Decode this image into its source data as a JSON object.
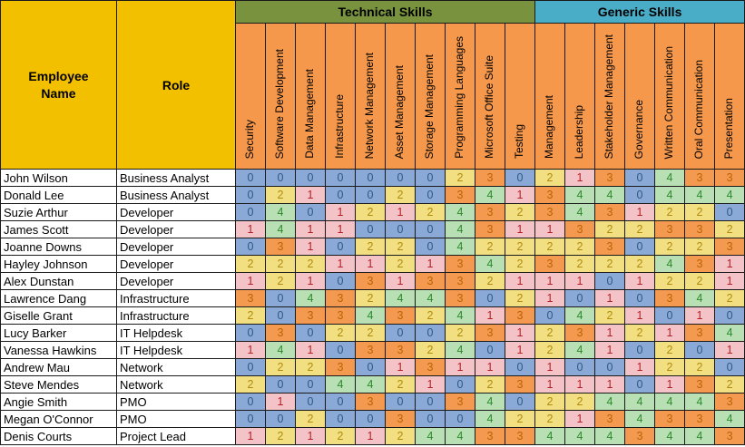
{
  "table": {
    "employee_header": "Employee Name",
    "role_header": "Role",
    "groups": [
      {
        "label": "Technical Skills",
        "color": "#78923E",
        "span": 10
      },
      {
        "label": "Generic Skills",
        "color": "#4AADC8",
        "span": 7
      }
    ],
    "skills": [
      "Security",
      "Software Development",
      "Data Management",
      "Infrastructure",
      "Network Management",
      "Asset Management",
      "Storage Management",
      "Programming Languages",
      "Microsoft Office Suite",
      "Testing",
      "Management",
      "Leadership",
      "Stakeholder Management",
      "Governance",
      "Written Communication",
      "Oral Communication",
      "Presentation"
    ],
    "colors": {
      "gold": "#F3C000",
      "skill_header": "#F5984B",
      "grid": "#1a1a1a"
    },
    "rating_styles": {
      "0": {
        "bg": "#8AA9D6",
        "fg": "#2E5984"
      },
      "1": {
        "bg": "#F4C3C8",
        "fg": "#B51F24"
      },
      "2": {
        "bg": "#F2DF81",
        "fg": "#B08C0E"
      },
      "3": {
        "bg": "#F49950",
        "fg": "#BC6204"
      },
      "4": {
        "bg": "#B9E0B4",
        "fg": "#2B8A2B"
      }
    },
    "employees": [
      {
        "name": "John Wilson",
        "role": "Business Analyst",
        "ratings": [
          0,
          0,
          0,
          0,
          0,
          0,
          0,
          2,
          3,
          0,
          2,
          1,
          3,
          0,
          4,
          3,
          3
        ]
      },
      {
        "name": "Donald Lee",
        "role": "Business Analyst",
        "ratings": [
          0,
          2,
          1,
          0,
          0,
          2,
          0,
          3,
          4,
          1,
          3,
          4,
          4,
          0,
          4,
          4,
          4
        ]
      },
      {
        "name": "Suzie Arthur",
        "role": "Developer",
        "ratings": [
          0,
          4,
          0,
          1,
          2,
          1,
          2,
          4,
          3,
          2,
          3,
          4,
          3,
          1,
          2,
          2,
          0
        ]
      },
      {
        "name": "James Scott",
        "role": "Developer",
        "ratings": [
          1,
          4,
          1,
          1,
          0,
          0,
          0,
          4,
          3,
          1,
          1,
          3,
          2,
          2,
          3,
          3,
          2
        ]
      },
      {
        "name": "Joanne Downs",
        "role": "Developer",
        "ratings": [
          0,
          3,
          1,
          0,
          2,
          2,
          0,
          4,
          2,
          2,
          2,
          2,
          3,
          0,
          2,
          2,
          3
        ]
      },
      {
        "name": "Hayley Johnson",
        "role": "Developer",
        "ratings": [
          2,
          2,
          2,
          1,
          1,
          2,
          1,
          3,
          4,
          2,
          3,
          2,
          2,
          2,
          4,
          3,
          1
        ]
      },
      {
        "name": "Alex Dunstan",
        "role": "Developer",
        "ratings": [
          1,
          2,
          1,
          0,
          3,
          1,
          3,
          3,
          2,
          1,
          1,
          1,
          0,
          1,
          2,
          2,
          1
        ]
      },
      {
        "name": "Lawrence Dang",
        "role": "Infrastructure",
        "ratings": [
          3,
          0,
          4,
          3,
          2,
          4,
          4,
          3,
          0,
          2,
          1,
          0,
          1,
          0,
          3,
          4,
          2
        ]
      },
      {
        "name": "Giselle Grant",
        "role": "Infrastructure",
        "ratings": [
          2,
          0,
          3,
          3,
          4,
          3,
          2,
          4,
          1,
          3,
          0,
          4,
          2,
          1,
          0,
          1,
          0
        ]
      },
      {
        "name": "Lucy Barker",
        "role": "IT Helpdesk",
        "ratings": [
          0,
          3,
          0,
          2,
          2,
          0,
          0,
          2,
          3,
          1,
          2,
          3,
          1,
          2,
          1,
          3,
          4
        ]
      },
      {
        "name": "Vanessa Hawkins",
        "role": "IT Helpdesk",
        "ratings": [
          1,
          4,
          1,
          0,
          3,
          3,
          2,
          4,
          0,
          1,
          2,
          4,
          1,
          0,
          2,
          0,
          1
        ]
      },
      {
        "name": "Andrew Mau",
        "role": "Network",
        "ratings": [
          0,
          2,
          2,
          3,
          0,
          1,
          3,
          1,
          1,
          0,
          1,
          0,
          0,
          1,
          2,
          2,
          0
        ]
      },
      {
        "name": "Steve Mendes",
        "role": "Network",
        "ratings": [
          2,
          0,
          0,
          4,
          4,
          2,
          1,
          0,
          2,
          3,
          1,
          1,
          1,
          0,
          1,
          3,
          2
        ]
      },
      {
        "name": "Angie Smith",
        "role": "PMO",
        "ratings": [
          0,
          1,
          0,
          0,
          3,
          0,
          0,
          3,
          4,
          0,
          2,
          2,
          4,
          4,
          4,
          4,
          3
        ]
      },
      {
        "name": "Megan O'Connor",
        "role": "PMO",
        "ratings": [
          0,
          0,
          2,
          0,
          0,
          3,
          0,
          0,
          4,
          2,
          2,
          1,
          3,
          4,
          3,
          3,
          4
        ]
      },
      {
        "name": "Denis Courts",
        "role": "Project Lead",
        "ratings": [
          1,
          2,
          1,
          2,
          1,
          2,
          4,
          4,
          3,
          3,
          4,
          4,
          4,
          3,
          4,
          4,
          3
        ]
      }
    ]
  }
}
